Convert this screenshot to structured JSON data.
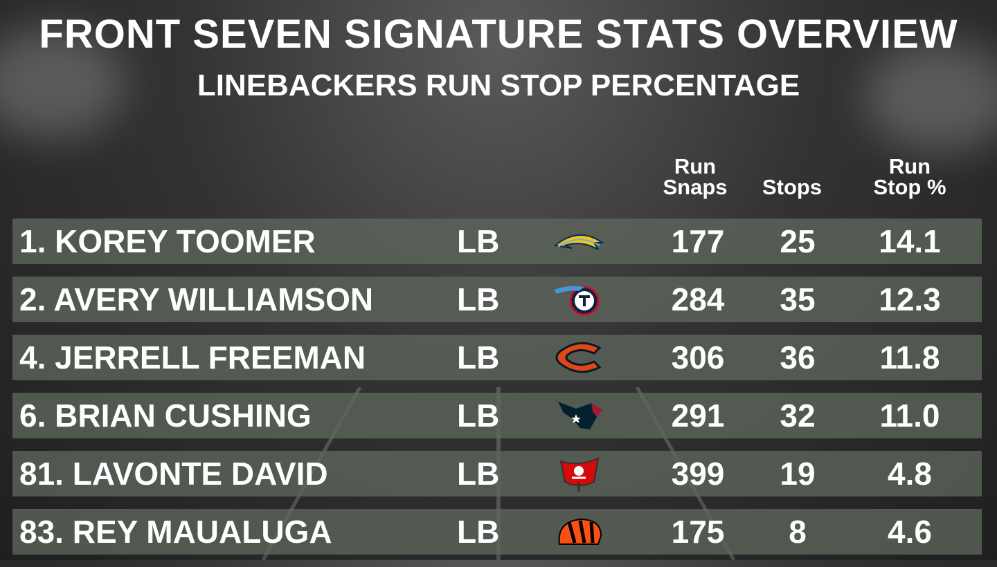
{
  "header": {
    "title": "FRONT SEVEN SIGNATURE STATS OVERVIEW",
    "subtitle": "LINEBACKERS RUN STOP PERCENTAGE"
  },
  "columns": {
    "snaps_line1": "Run",
    "snaps_line2": "Snaps",
    "stops": "Stops",
    "pct_line1": "Run",
    "pct_line2": "Stop %"
  },
  "rows": [
    {
      "name": "1. KOREY TOOMER",
      "pos": "LB",
      "team_icon": "chargers-bolt-icon",
      "snaps": "177",
      "stops": "25",
      "pct": "14.1"
    },
    {
      "name": "2. AVERY WILLIAMSON",
      "pos": "LB",
      "team_icon": "titans-logo-icon",
      "snaps": "284",
      "stops": "35",
      "pct": "12.3"
    },
    {
      "name": "4. JERRELL FREEMAN",
      "pos": "LB",
      "team_icon": "bears-c-logo-icon",
      "snaps": "306",
      "stops": "36",
      "pct": "11.8"
    },
    {
      "name": "6. BRIAN CUSHING",
      "pos": "LB",
      "team_icon": "texans-bull-icon",
      "snaps": "291",
      "stops": "32",
      "pct": "11.0"
    },
    {
      "name": "81. LAVONTE DAVID",
      "pos": "LB",
      "team_icon": "buccaneers-flag-icon",
      "snaps": "399",
      "stops": "19",
      "pct": "4.8"
    },
    {
      "name": "83. REY MAUALUGA",
      "pos": "LB",
      "team_icon": "bengals-helmet-icon",
      "snaps": "175",
      "stops": "8",
      "pct": "4.6"
    }
  ]
}
